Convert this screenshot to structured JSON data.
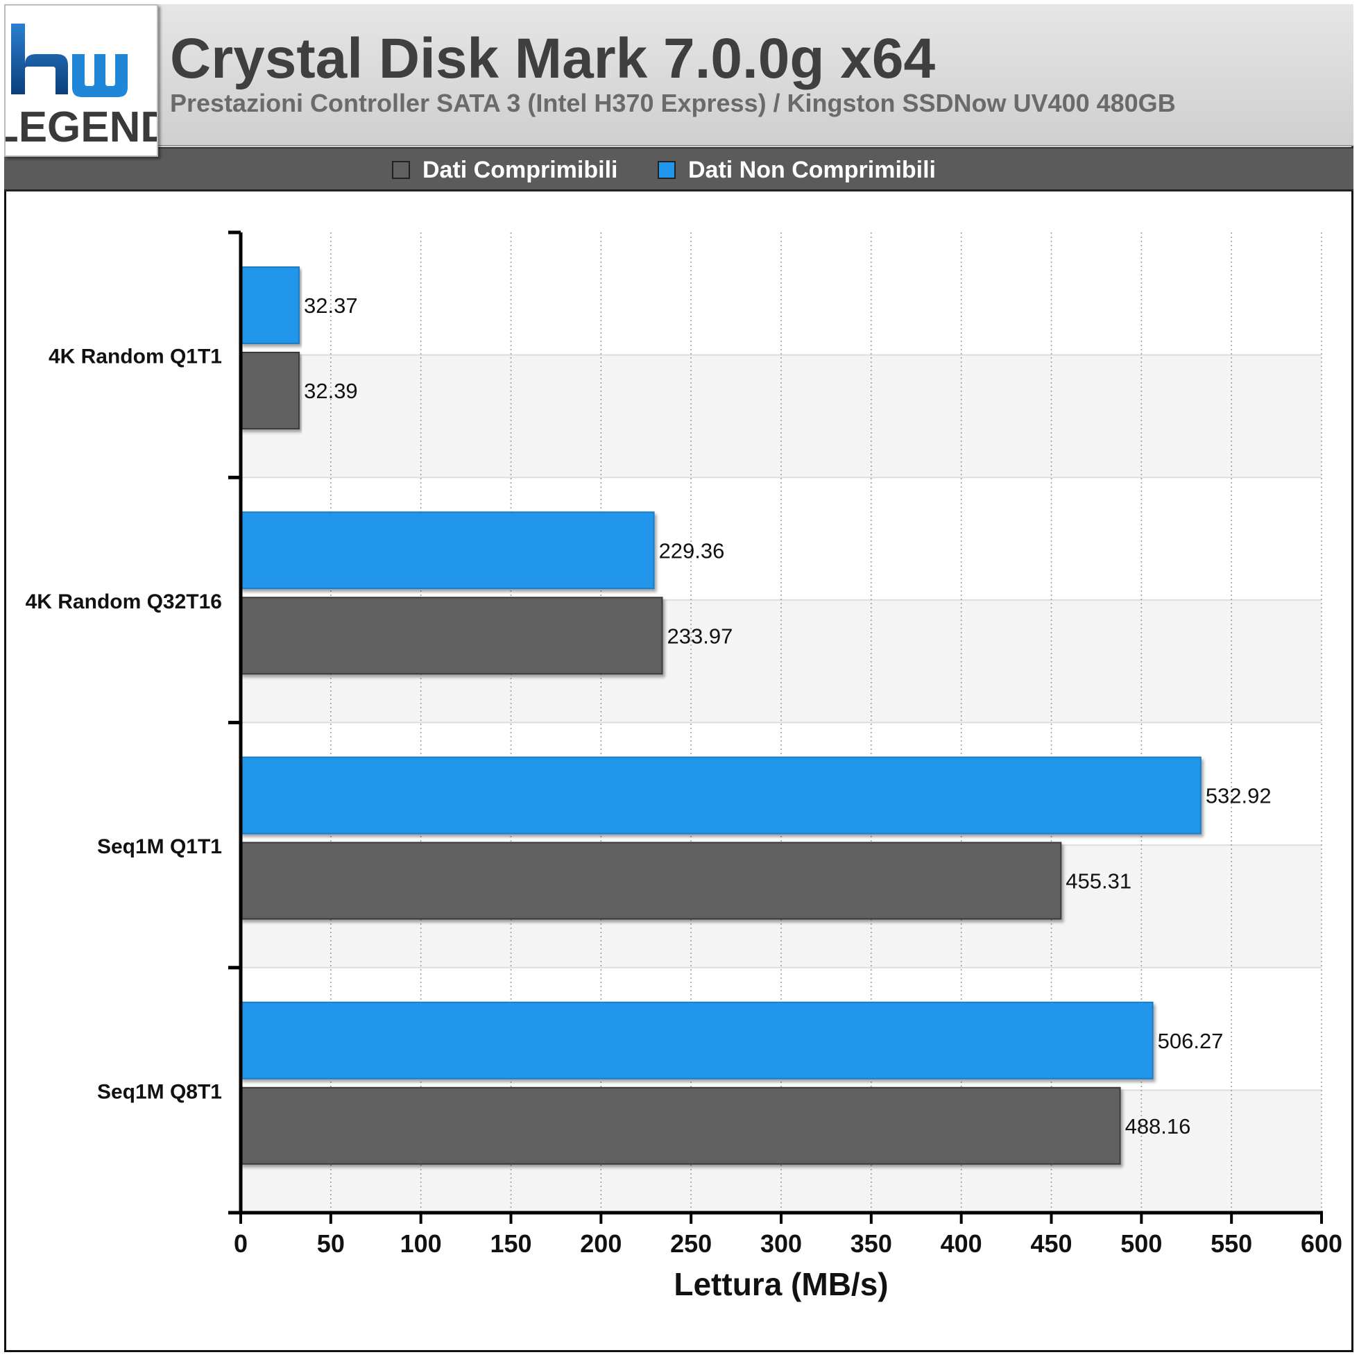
{
  "header": {
    "title": "Crystal Disk Mark 7.0.0g x64",
    "subtitle": "Prestazioni Controller SATA 3 (Intel H370 Express) / Kingston SSDNow UV400 480GB",
    "logo_text": "LEGEND",
    "logo_mark": "hw"
  },
  "legend": [
    {
      "label": "Dati Comprimibili",
      "color": "#606060"
    },
    {
      "label": "Dati Non Comprimibili",
      "color": "#2196ea"
    }
  ],
  "chart_data": {
    "type": "bar",
    "orientation": "horizontal",
    "categories": [
      "4K Random Q1T1",
      "4K Random Q32T16",
      "Seq1M Q1T1",
      "Seq1M Q8T1"
    ],
    "series": [
      {
        "name": "Dati Non Comprimibili",
        "color": "#2196ea",
        "values": [
          32.37,
          229.36,
          532.92,
          506.27
        ]
      },
      {
        "name": "Dati Comprimibili",
        "color": "#606060",
        "values": [
          32.39,
          233.97,
          455.31,
          488.16
        ]
      }
    ],
    "xlabel": "Lettura (MB/s)",
    "xlim": [
      0,
      600
    ],
    "xticks": [
      0,
      50,
      100,
      150,
      200,
      250,
      300,
      350,
      400,
      450,
      500,
      550,
      600
    ],
    "grid": true,
    "legend_position": "top"
  }
}
